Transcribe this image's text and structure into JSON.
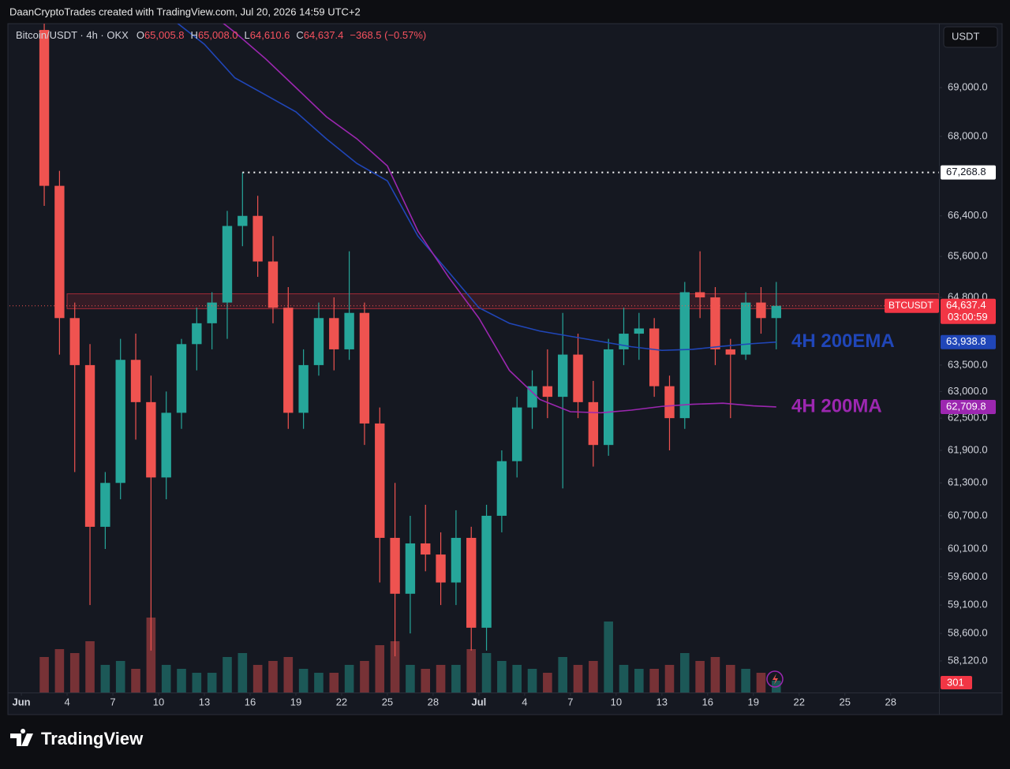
{
  "page": {
    "header": "DaanCryptoTrades created with TradingView.com, Jul 20, 2026 14:59 UTC+2",
    "footer": "TradingView",
    "currency": "USDT"
  },
  "chart_data": {
    "type": "candlestick",
    "log_scale": true,
    "legend": {
      "symbol": "Bitcoin/USDT · 4h · OKX",
      "ohlc": [
        {
          "key": "O",
          "value": 65005.8,
          "label": "65,005.8"
        },
        {
          "key": "H",
          "value": 65008.0,
          "label": "65,008.0"
        },
        {
          "key": "L",
          "value": 64610.6,
          "label": "64,610.6"
        },
        {
          "key": "C",
          "value": 64637.4,
          "label": "64,637.4"
        }
      ],
      "change": "−368.5 (−0.57%)"
    },
    "up_color": "#26a69a",
    "down_color": "#ef5350",
    "x": [
      1.5,
      2.5,
      3.5,
      4.5,
      5.5,
      6.5,
      7.5,
      8.5,
      9.5,
      10.5,
      11.5,
      12.5,
      13.5,
      14.5,
      15.5,
      16.5,
      17.5,
      18.5,
      19.5,
      20.5,
      21.5,
      22.5,
      23.5,
      24.5,
      25.5,
      26.5,
      27.5,
      28.5,
      29.5,
      30.5,
      31.5,
      32.5,
      33.5,
      34.5,
      35.5,
      36.5,
      37.5,
      38.5,
      39.5,
      40.5,
      41.5,
      42.5,
      43.5,
      44.5,
      45.5,
      46.5,
      47.5,
      48.5,
      49.5
    ],
    "candles": [
      [
        70200,
        70400,
        66600,
        67000
      ],
      [
        67000,
        67300,
        63700,
        64400
      ],
      [
        64400,
        64700,
        61500,
        63500
      ],
      [
        63500,
        63900,
        59100,
        60500
      ],
      [
        60500,
        61500,
        60100,
        61300
      ],
      [
        61300,
        64000,
        61000,
        63600
      ],
      [
        63600,
        64100,
        62100,
        62800
      ],
      [
        62800,
        63300,
        58300,
        61400
      ],
      [
        61400,
        63000,
        61000,
        62600
      ],
      [
        62600,
        64000,
        62300,
        63900
      ],
      [
        63900,
        64600,
        63400,
        64300
      ],
      [
        64300,
        64900,
        63800,
        64700
      ],
      [
        64700,
        66500,
        64000,
        66200
      ],
      [
        66200,
        67268.8,
        65800,
        66400
      ],
      [
        66400,
        66800,
        65200,
        65500
      ],
      [
        65500,
        66000,
        64300,
        64600
      ],
      [
        64600,
        65000,
        62300,
        62600
      ],
      [
        62600,
        63800,
        62300,
        63500
      ],
      [
        63500,
        64700,
        63300,
        64400
      ],
      [
        64400,
        64800,
        63400,
        63800
      ],
      [
        63800,
        65700,
        63600,
        64500
      ],
      [
        64500,
        64700,
        62000,
        62400
      ],
      [
        62400,
        62700,
        59500,
        60300
      ],
      [
        60300,
        61300,
        58200,
        59300
      ],
      [
        59300,
        60700,
        58600,
        60200
      ],
      [
        60200,
        60900,
        59700,
        60000
      ],
      [
        60000,
        60400,
        59100,
        59500
      ],
      [
        59500,
        60800,
        59100,
        60300
      ],
      [
        60300,
        60500,
        58300,
        58700
      ],
      [
        58700,
        60900,
        58300,
        60700
      ],
      [
        60700,
        61900,
        60400,
        61700
      ],
      [
        61700,
        62900,
        61400,
        62700
      ],
      [
        62700,
        63400,
        62300,
        63100
      ],
      [
        63100,
        63800,
        62500,
        62900
      ],
      [
        62900,
        64500,
        61200,
        63700
      ],
      [
        63700,
        64100,
        62500,
        62800
      ],
      [
        62800,
        63200,
        61600,
        62000
      ],
      [
        62000,
        64000,
        61800,
        63800
      ],
      [
        63800,
        64600,
        63500,
        64100
      ],
      [
        64100,
        64500,
        63600,
        64200
      ],
      [
        64200,
        64400,
        62900,
        63100
      ],
      [
        63100,
        63300,
        61900,
        62500
      ],
      [
        62500,
        65100,
        62300,
        64900
      ],
      [
        64900,
        65700,
        64400,
        64800
      ],
      [
        64800,
        65000,
        63500,
        63800
      ],
      [
        63800,
        64000,
        62500,
        63700
      ],
      [
        63700,
        64900,
        63600,
        64700
      ],
      [
        64700,
        65000,
        64100,
        64400
      ],
      [
        64400,
        65100,
        63800,
        64637.4
      ]
    ],
    "volume": {
      "values": [
        900,
        1100,
        1000,
        1300,
        700,
        800,
        600,
        1900,
        700,
        600,
        500,
        500,
        900,
        1000,
        700,
        800,
        900,
        600,
        500,
        500,
        700,
        800,
        1200,
        1300,
        700,
        600,
        700,
        700,
        1100,
        1000,
        800,
        700,
        600,
        500,
        900,
        700,
        800,
        1800,
        700,
        600,
        600,
        700,
        1000,
        800,
        900,
        700,
        600,
        500,
        301
      ],
      "ylim": [
        0,
        2000
      ],
      "last_label": "301"
    },
    "series": [
      {
        "name": "4H 200EMA",
        "color": "#2046b8",
        "x": [
          10,
          12,
          14,
          16,
          18,
          20,
          22,
          24,
          26,
          28,
          30,
          32,
          34,
          36,
          38,
          40,
          42,
          44,
          46,
          48,
          49.5
        ],
        "values": [
          70400,
          69900,
          69200,
          68850,
          68500,
          67950,
          67450,
          67100,
          66000,
          65300,
          64600,
          64300,
          64150,
          64050,
          63950,
          63850,
          63780,
          63800,
          63860,
          63910,
          63938.8
        ],
        "last_label": "63,938.8"
      },
      {
        "name": "4H 200MA",
        "color": "#9c27b0",
        "x": [
          13,
          14,
          16,
          18,
          20,
          22,
          24,
          26,
          28,
          30,
          32,
          34,
          36,
          38,
          40,
          42,
          44,
          46,
          48,
          49.5
        ],
        "values": [
          70400,
          70150,
          69600,
          69000,
          68400,
          67950,
          67400,
          66100,
          65200,
          64400,
          63400,
          62850,
          62620,
          62600,
          62650,
          62720,
          62760,
          62780,
          62730,
          62709.8
        ],
        "last_label": "62,709.8"
      }
    ],
    "last_price": {
      "symbol": "BTCUSDT",
      "value": 64637.4,
      "label": "64,637.4",
      "countdown": "03:00:59"
    },
    "level": {
      "value": 67268.8,
      "label": "67,268.8"
    },
    "zone": [
      64580,
      64870
    ],
    "xlim": [
      -0.78,
      60.17
    ],
    "xticks": [
      {
        "value": 0,
        "label": "Jun"
      },
      {
        "value": 3,
        "label": "4"
      },
      {
        "value": 6,
        "label": "7"
      },
      {
        "value": 9,
        "label": "10"
      },
      {
        "value": 12,
        "label": "13"
      },
      {
        "value": 15,
        "label": "16"
      },
      {
        "value": 18,
        "label": "19"
      },
      {
        "value": 21,
        "label": "22"
      },
      {
        "value": 24,
        "label": "25"
      },
      {
        "value": 27,
        "label": "28"
      },
      {
        "value": 30,
        "label": "Jul"
      },
      {
        "value": 33,
        "label": "4"
      },
      {
        "value": 36,
        "label": "7"
      },
      {
        "value": 39,
        "label": "10"
      },
      {
        "value": 42,
        "label": "13"
      },
      {
        "value": 45,
        "label": "16"
      },
      {
        "value": 48,
        "label": "19"
      },
      {
        "value": 51,
        "label": "22"
      },
      {
        "value": 54,
        "label": "25"
      },
      {
        "value": 57,
        "label": "28"
      }
    ],
    "ylim": [
      57573,
      70332
    ],
    "yticks": [
      {
        "value": 69000,
        "label": "69,000.0"
      },
      {
        "value": 68000,
        "label": "68,000.0"
      },
      {
        "value": 66400,
        "label": "66,400.0"
      },
      {
        "value": 65600,
        "label": "65,600.0"
      },
      {
        "value": 64800,
        "label": "64,800.0"
      },
      {
        "value": 63500,
        "label": "63,500.0"
      },
      {
        "value": 63000,
        "label": "63,000.0"
      },
      {
        "value": 62500,
        "label": "62,500.0"
      },
      {
        "value": 61900,
        "label": "61,900.0"
      },
      {
        "value": 61300,
        "label": "61,300.0"
      },
      {
        "value": 60700,
        "label": "60,700.0"
      },
      {
        "value": 60100,
        "label": "60,100.0"
      },
      {
        "value": 59600,
        "label": "59,600.0"
      },
      {
        "value": 59100,
        "label": "59,100.0"
      },
      {
        "value": 58600,
        "label": "58,600.0"
      },
      {
        "value": 58120,
        "label": "58,120.0"
      }
    ]
  }
}
